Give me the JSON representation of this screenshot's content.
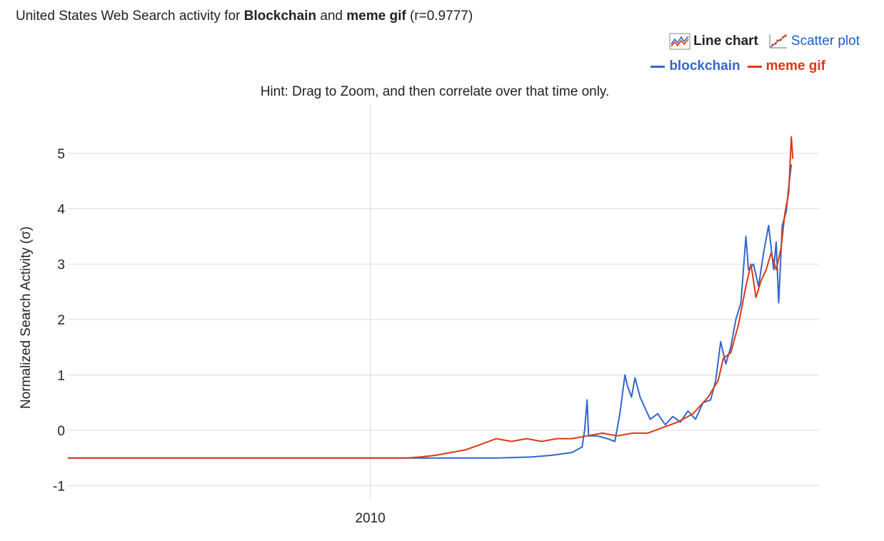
{
  "header": {
    "title_prefix": "United States Web Search activity for ",
    "term_a": "Blockchain",
    "title_and": " and ",
    "term_b": "meme gif",
    "title_suffix": " (r=0.9777)"
  },
  "toggles": {
    "line_chart": "Line chart",
    "scatter_plot": "Scatter plot"
  },
  "hint": "Hint: Drag to Zoom, and then correlate over that time only.",
  "colors": {
    "blockchain": "#3366cc",
    "meme_gif": "#dc3912",
    "grid": "#dddddd"
  },
  "chart_data": {
    "type": "line",
    "ylabel": "Normalized Search Activity (σ)",
    "ylim": [
      -1.25,
      5.9
    ],
    "xlim": [
      2004.0,
      2018.9
    ],
    "y_ticks": [
      -1,
      0,
      1,
      2,
      3,
      4,
      5
    ],
    "x_ticks": [
      {
        "value": 2010,
        "label": "2010"
      }
    ],
    "grid": true,
    "legend_position": "top-right",
    "series": [
      {
        "name": "blockchain",
        "color": "#3366cc",
        "points": [
          [
            2004.0,
            -0.5
          ],
          [
            2011.5,
            -0.5
          ],
          [
            2012.5,
            -0.5
          ],
          [
            2013.2,
            -0.48
          ],
          [
            2013.6,
            -0.45
          ],
          [
            2014.0,
            -0.4
          ],
          [
            2014.2,
            -0.3
          ],
          [
            2014.25,
            0.0
          ],
          [
            2014.3,
            0.55
          ],
          [
            2014.33,
            -0.1
          ],
          [
            2014.5,
            -0.1
          ],
          [
            2014.7,
            -0.15
          ],
          [
            2014.85,
            -0.2
          ],
          [
            2014.95,
            0.3
          ],
          [
            2015.05,
            1.0
          ],
          [
            2015.1,
            0.8
          ],
          [
            2015.18,
            0.6
          ],
          [
            2015.25,
            0.95
          ],
          [
            2015.35,
            0.6
          ],
          [
            2015.45,
            0.4
          ],
          [
            2015.55,
            0.2
          ],
          [
            2015.7,
            0.3
          ],
          [
            2015.85,
            0.1
          ],
          [
            2016.0,
            0.25
          ],
          [
            2016.15,
            0.15
          ],
          [
            2016.3,
            0.35
          ],
          [
            2016.45,
            0.2
          ],
          [
            2016.6,
            0.5
          ],
          [
            2016.75,
            0.55
          ],
          [
            2016.85,
            0.9
          ],
          [
            2016.95,
            1.6
          ],
          [
            2017.05,
            1.2
          ],
          [
            2017.15,
            1.5
          ],
          [
            2017.25,
            2.0
          ],
          [
            2017.35,
            2.3
          ],
          [
            2017.45,
            3.5
          ],
          [
            2017.5,
            2.9
          ],
          [
            2017.6,
            3.0
          ],
          [
            2017.7,
            2.6
          ],
          [
            2017.8,
            3.2
          ],
          [
            2017.9,
            3.7
          ],
          [
            2018.0,
            2.9
          ],
          [
            2018.05,
            3.4
          ],
          [
            2018.1,
            2.3
          ],
          [
            2018.17,
            3.7
          ],
          [
            2018.25,
            3.95
          ],
          [
            2018.3,
            4.4
          ],
          [
            2018.35,
            4.8
          ]
        ]
      },
      {
        "name": "meme gif",
        "color": "#dc3912",
        "points": [
          [
            2004.0,
            -0.5
          ],
          [
            2010.7,
            -0.5
          ],
          [
            2011.0,
            -0.48
          ],
          [
            2011.3,
            -0.45
          ],
          [
            2011.6,
            -0.4
          ],
          [
            2011.9,
            -0.35
          ],
          [
            2012.2,
            -0.25
          ],
          [
            2012.5,
            -0.15
          ],
          [
            2012.8,
            -0.2
          ],
          [
            2013.1,
            -0.15
          ],
          [
            2013.4,
            -0.2
          ],
          [
            2013.7,
            -0.15
          ],
          [
            2014.0,
            -0.15
          ],
          [
            2014.3,
            -0.1
          ],
          [
            2014.6,
            -0.05
          ],
          [
            2014.9,
            -0.1
          ],
          [
            2015.2,
            -0.05
          ],
          [
            2015.5,
            -0.05
          ],
          [
            2015.8,
            0.05
          ],
          [
            2016.1,
            0.15
          ],
          [
            2016.4,
            0.3
          ],
          [
            2016.7,
            0.6
          ],
          [
            2016.9,
            0.9
          ],
          [
            2017.0,
            1.3
          ],
          [
            2017.15,
            1.4
          ],
          [
            2017.3,
            1.9
          ],
          [
            2017.45,
            2.6
          ],
          [
            2017.55,
            3.0
          ],
          [
            2017.65,
            2.4
          ],
          [
            2017.75,
            2.7
          ],
          [
            2017.85,
            2.9
          ],
          [
            2017.95,
            3.2
          ],
          [
            2018.05,
            2.9
          ],
          [
            2018.15,
            3.3
          ],
          [
            2018.22,
            3.9
          ],
          [
            2018.3,
            4.3
          ],
          [
            2018.35,
            5.3
          ],
          [
            2018.38,
            4.9
          ]
        ]
      }
    ]
  }
}
